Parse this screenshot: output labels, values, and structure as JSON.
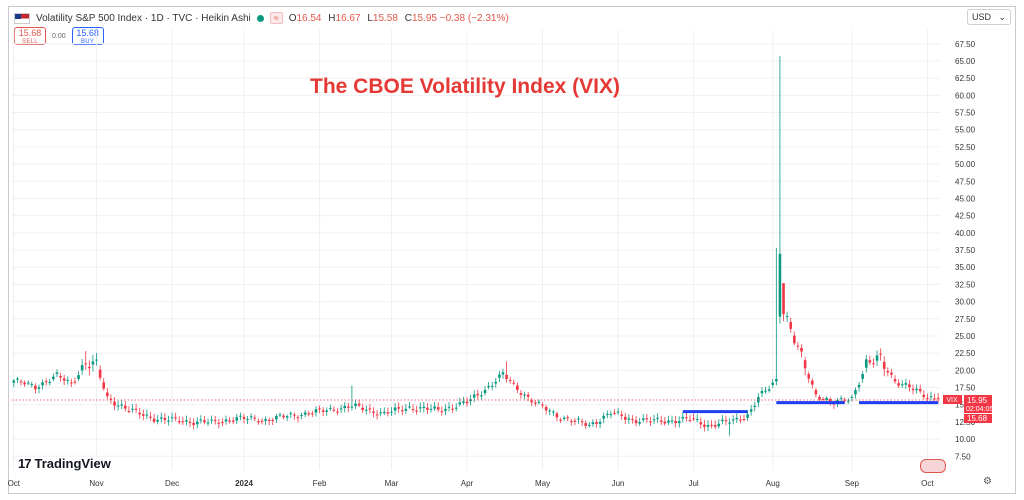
{
  "header": {
    "symbol_title": "Volatility S&P 500 Index · 1D · TVC · Heikin Ashi",
    "ohlc": [
      {
        "k": "O",
        "v": "16.54"
      },
      {
        "k": "H",
        "v": "16.67"
      },
      {
        "k": "L",
        "v": "15.58"
      },
      {
        "k": "C",
        "v": "15.95 −0.38 (−2.31%)"
      }
    ],
    "eye_label": "≈"
  },
  "currency": {
    "label": "USD",
    "arrow": "⌄"
  },
  "trade": {
    "sell_price": "15.68",
    "sell_label": "SELL",
    "spread": "0.00",
    "buy_price": "15.68",
    "buy_label": "BUY"
  },
  "brand": {
    "name": "TradingView",
    "mark": "17"
  },
  "price_tags": {
    "symbol": "VIX",
    "last": "15.95",
    "countdown": "02:04:05",
    "low": "15.68"
  },
  "chart_data": {
    "type": "candlestick",
    "title": "The CBOE Volatility Index (VIX)",
    "y_ticks": [
      7.5,
      10,
      12.5,
      15,
      17.5,
      20,
      22.5,
      25,
      27.5,
      30,
      32.5,
      35,
      37.5,
      40,
      42.5,
      45,
      47.5,
      50,
      52.5,
      55,
      57.5,
      60,
      62.5,
      65,
      67.5
    ],
    "y_tick_labels": [
      "7.50",
      "10.00",
      "12.50",
      "15.00",
      "17.50",
      "20.00",
      "22.50",
      "25.00",
      "27.50",
      "30.00",
      "32.50",
      "35.00",
      "37.50",
      "40.00",
      "42.50",
      "45.00",
      "47.50",
      "50.00",
      "52.50",
      "55.00",
      "57.50",
      "60.00",
      "62.50",
      "65.00",
      "67.50"
    ],
    "ylim": [
      5.5,
      69.5
    ],
    "x_tick_labels": [
      "Oct",
      "Nov",
      "Dec",
      "2024",
      "Feb",
      "Mar",
      "Apr",
      "May",
      "Jun",
      "Jul",
      "Aug",
      "Sep",
      "Oct"
    ],
    "x_tick_index": [
      0,
      23,
      44,
      64,
      85,
      105,
      126,
      147,
      168,
      189,
      211,
      233,
      254
    ],
    "bar_count": 258,
    "last_close": 15.95,
    "dotted_reference": 15.68,
    "anchors": [
      {
        "i": 0,
        "v": 18.5
      },
      {
        "i": 6,
        "v": 17.6
      },
      {
        "i": 12,
        "v": 19.2
      },
      {
        "i": 16,
        "v": 18.0
      },
      {
        "i": 20,
        "v": 21.2
      },
      {
        "i": 23,
        "v": 20.4
      },
      {
        "i": 26,
        "v": 16.0
      },
      {
        "i": 32,
        "v": 14.2
      },
      {
        "i": 40,
        "v": 12.9
      },
      {
        "i": 48,
        "v": 12.6
      },
      {
        "i": 55,
        "v": 12.4
      },
      {
        "i": 62,
        "v": 13.0
      },
      {
        "i": 70,
        "v": 12.8
      },
      {
        "i": 78,
        "v": 13.5
      },
      {
        "i": 85,
        "v": 14.0
      },
      {
        "i": 94,
        "v": 14.8
      },
      {
        "i": 103,
        "v": 13.7
      },
      {
        "i": 110,
        "v": 14.6
      },
      {
        "i": 118,
        "v": 14.2
      },
      {
        "i": 126,
        "v": 15.3
      },
      {
        "i": 131,
        "v": 17.2
      },
      {
        "i": 136,
        "v": 19.4
      },
      {
        "i": 139,
        "v": 17.8
      },
      {
        "i": 145,
        "v": 15.2
      },
      {
        "i": 152,
        "v": 13.2
      },
      {
        "i": 160,
        "v": 12.0
      },
      {
        "i": 166,
        "v": 13.8
      },
      {
        "i": 172,
        "v": 12.8
      },
      {
        "i": 180,
        "v": 12.6
      },
      {
        "i": 188,
        "v": 12.9
      },
      {
        "i": 193,
        "v": 12.0
      },
      {
        "i": 200,
        "v": 12.6
      },
      {
        "i": 204,
        "v": 13.5
      },
      {
        "i": 207,
        "v": 16.0
      },
      {
        "i": 210,
        "v": 17.4
      },
      {
        "i": 212,
        "v": 18.6
      },
      {
        "i": 213,
        "v": 38.0
      },
      {
        "i": 214,
        "v": 29.0
      },
      {
        "i": 216,
        "v": 26.0
      },
      {
        "i": 219,
        "v": 21.5
      },
      {
        "i": 223,
        "v": 16.5
      },
      {
        "i": 228,
        "v": 15.2
      },
      {
        "i": 233,
        "v": 16.0
      },
      {
        "i": 237,
        "v": 20.8
      },
      {
        "i": 241,
        "v": 21.5
      },
      {
        "i": 245,
        "v": 18.5
      },
      {
        "i": 250,
        "v": 17.2
      },
      {
        "i": 254,
        "v": 16.2
      },
      {
        "i": 257,
        "v": 15.95
      }
    ],
    "spikes": [
      {
        "i": 213,
        "high": 65.7
      },
      {
        "i": 212,
        "high": 37.8
      },
      {
        "i": 214,
        "high": 31.0
      },
      {
        "i": 199,
        "low": 10.5
      },
      {
        "i": 137,
        "high": 21.3
      },
      {
        "i": 94,
        "high": 17.8
      },
      {
        "i": 20,
        "high": 22.8
      }
    ],
    "support_lines": [
      {
        "from": 186,
        "to": 204,
        "value": 14.0
      },
      {
        "from": 212,
        "to": 231,
        "value": 15.3
      },
      {
        "from": 235,
        "to": 257,
        "value": 15.3
      }
    ],
    "colors": {
      "up": "#089981",
      "down": "#f23645",
      "support": "#1f3df2",
      "title": "#e53935",
      "tag": "#e23c3c"
    }
  }
}
